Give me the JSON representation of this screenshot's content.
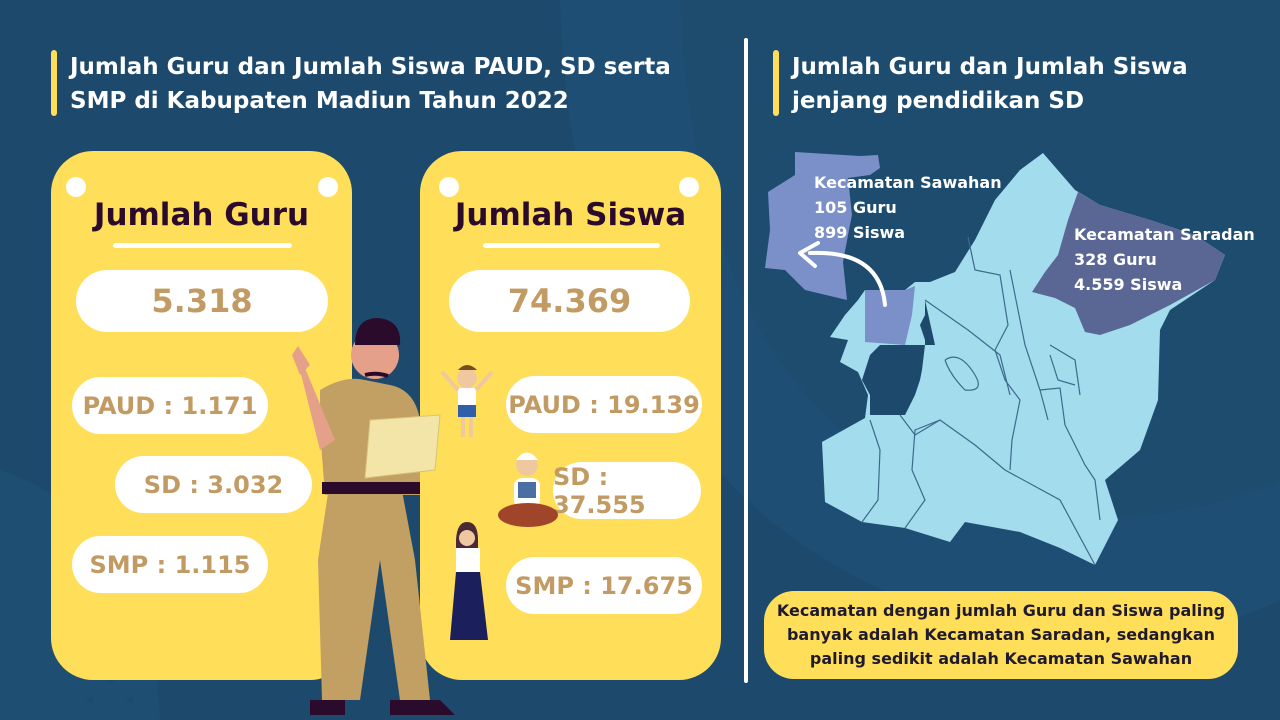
{
  "left_title": {
    "line1": "Jumlah Guru dan Jumlah Siswa PAUD, SD serta",
    "line2": "SMP di Kabupaten Madiun Tahun 2022"
  },
  "right_title": {
    "line1": "Jumlah Guru dan Jumlah Siswa",
    "line2": "jenjang pendidikan SD"
  },
  "guru_card": {
    "title": "Jumlah Guru",
    "total": "5.318",
    "paud": "PAUD : 1.171",
    "sd": "SD : 3.032",
    "smp": "SMP : 1.115"
  },
  "siswa_card": {
    "title": "Jumlah Siswa",
    "total": "74.369",
    "paud": "PAUD : 19.139",
    "sd": "SD : 37.555",
    "smp": "SMP : 17.675"
  },
  "map": {
    "sawahan": {
      "name": "Kecamatan Sawahan",
      "guru": "105 Guru",
      "siswa": "899 Siswa",
      "color": "#7b8fc9"
    },
    "saradan": {
      "name": "Kecamatan Saradan",
      "guru": "328 Guru",
      "siswa": "4.559 Siswa",
      "color": "#5a6794"
    },
    "base_color": "#a3dcec"
  },
  "note": "Kecamatan dengan jumlah Guru dan Siswa paling banyak adalah Kecamatan Saradan, sedangkan paling sedikit adalah Kecamatan Sawahan",
  "colors": {
    "background": "#1d4a6c",
    "accent": "#ffde59",
    "number": "#c19b63"
  }
}
